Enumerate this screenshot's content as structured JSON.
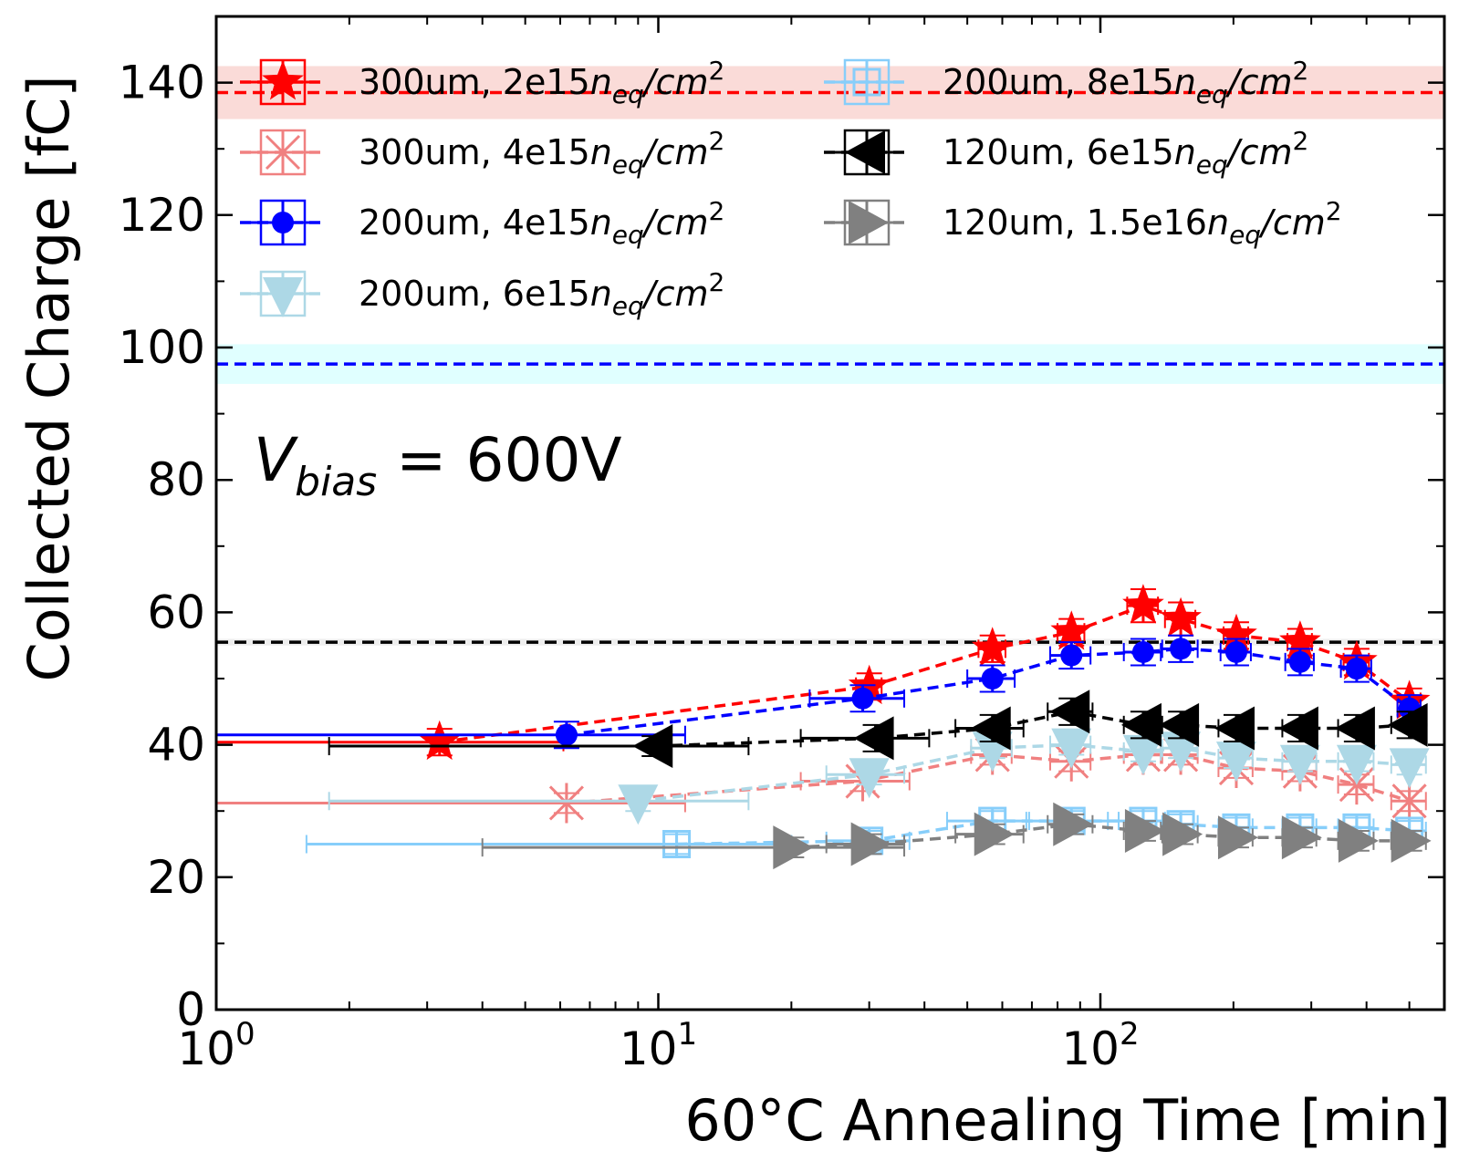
{
  "chart_data": {
    "type": "scatter",
    "title": "",
    "xlabel": "60°C Annealing Time [min]",
    "ylabel": "Collected Charge [fC]",
    "xscale": "log",
    "xlim": [
      1,
      600
    ],
    "ylim": [
      0,
      150
    ],
    "x_ticks": [
      {
        "value": 1,
        "base": "10",
        "exp": "0"
      },
      {
        "value": 10,
        "base": "10",
        "exp": "1"
      },
      {
        "value": 100,
        "base": "10",
        "exp": "2"
      }
    ],
    "y_ticks": [
      {
        "value": 0,
        "label": "0"
      },
      {
        "value": 20,
        "label": "20"
      },
      {
        "value": 40,
        "label": "40"
      },
      {
        "value": 60,
        "label": "60"
      },
      {
        "value": 80,
        "label": "80"
      },
      {
        "value": 100,
        "label": "100"
      },
      {
        "value": 120,
        "label": "120"
      },
      {
        "value": 140,
        "label": "140"
      }
    ],
    "annotation": {
      "v": "V",
      "sub": "bias",
      "rest": " = 600V"
    },
    "reference_lines": [
      {
        "name": "300um-2e15-reference",
        "y": 138.5,
        "band": [
          134.5,
          142.5
        ],
        "color": "#ff0000",
        "band_color": "#fadbd8"
      },
      {
        "name": "200um-4e15-reference",
        "y": 97.5,
        "band": [
          94.5,
          100.5
        ],
        "color": "#0000ff",
        "band_color": "#e0ffff"
      },
      {
        "name": "120um-6e15-reference",
        "y": 55.5,
        "band": [
          55.0,
          56.0
        ],
        "color": "#000000",
        "band_color": "#eeeeee"
      }
    ],
    "legend": {
      "placement": "top",
      "columns": 2
    },
    "series": [
      {
        "name": "300um, 2e15neq/cm2",
        "label_prefix": "300um, 2e15",
        "n_sub": "eq",
        "unit": "/cm",
        "unit_sup": "2",
        "color": "#ff0000",
        "marker": "star",
        "legend_col": 0,
        "legend_row": 0,
        "points": [
          {
            "x": 3.2,
            "y": 40.4,
            "xlo": 1.0,
            "xhi": 6.1,
            "yerr": 2.0
          },
          {
            "x": 30,
            "y": 48.8,
            "xlo": 28,
            "xhi": 32,
            "yerr": 2.0
          },
          {
            "x": 57,
            "y": 54.5,
            "xlo": 53,
            "xhi": 61,
            "yerr": 2.0
          },
          {
            "x": 86,
            "y": 57.0,
            "xlo": 80,
            "xhi": 92,
            "yerr": 2.0
          },
          {
            "x": 125,
            "y": 61.0,
            "xlo": 115,
            "xhi": 135,
            "yerr": 2.5
          },
          {
            "x": 152,
            "y": 59.0,
            "xlo": 140,
            "xhi": 164,
            "yerr": 2.5
          },
          {
            "x": 203,
            "y": 56.5,
            "xlo": 190,
            "xhi": 216,
            "yerr": 2.0
          },
          {
            "x": 283,
            "y": 55.5,
            "xlo": 265,
            "xhi": 301,
            "yerr": 2.0
          },
          {
            "x": 380,
            "y": 52.5,
            "xlo": 355,
            "xhi": 405,
            "yerr": 2.0
          },
          {
            "x": 500,
            "y": 46.5,
            "xlo": 470,
            "xhi": 530,
            "yerr": 2.0
          }
        ]
      },
      {
        "name": "300um, 4e15neq/cm2",
        "label_prefix": "300um, 4e15",
        "n_sub": "eq",
        "unit": "/cm",
        "unit_sup": "2",
        "color": "#f08080",
        "marker": "star-x",
        "legend_col": 0,
        "legend_row": 1,
        "points": [
          {
            "x": 6.2,
            "y": 31.2,
            "xlo": 1.0,
            "xhi": 11.5,
            "yerr": 1.5
          },
          {
            "x": 29,
            "y": 34.5,
            "xlo": 21,
            "xhi": 37,
            "yerr": 1.5
          },
          {
            "x": 57,
            "y": 38.5,
            "xlo": 51,
            "xhi": 63,
            "yerr": 1.5
          },
          {
            "x": 86,
            "y": 37.5,
            "xlo": 77,
            "xhi": 95,
            "yerr": 1.5
          },
          {
            "x": 125,
            "y": 38.5,
            "xlo": 113,
            "xhi": 137,
            "yerr": 1.5
          },
          {
            "x": 152,
            "y": 38.5,
            "xlo": 138,
            "xhi": 166,
            "yerr": 1.5
          },
          {
            "x": 203,
            "y": 36.5,
            "xlo": 185,
            "xhi": 221,
            "yerr": 1.5
          },
          {
            "x": 283,
            "y": 36.0,
            "xlo": 258,
            "xhi": 308,
            "yerr": 1.5
          },
          {
            "x": 380,
            "y": 34.0,
            "xlo": 345,
            "xhi": 415,
            "yerr": 1.5
          },
          {
            "x": 500,
            "y": 31.5,
            "xlo": 455,
            "xhi": 545,
            "yerr": 1.5
          }
        ]
      },
      {
        "name": "200um, 4e15neq/cm2",
        "label_prefix": "200um, 4e15",
        "n_sub": "eq",
        "unit": "/cm",
        "unit_sup": "2",
        "color": "#0000ff",
        "marker": "circle",
        "legend_col": 0,
        "legend_row": 2,
        "points": [
          {
            "x": 6.2,
            "y": 41.5,
            "xlo": 1.0,
            "xhi": 11.5,
            "yerr": 2.0
          },
          {
            "x": 29,
            "y": 47.0,
            "xlo": 22,
            "xhi": 36,
            "yerr": 2.0
          },
          {
            "x": 57,
            "y": 50.0,
            "xlo": 50,
            "xhi": 64,
            "yerr": 2.0
          },
          {
            "x": 86,
            "y": 53.5,
            "xlo": 77,
            "xhi": 95,
            "yerr": 2.0
          },
          {
            "x": 125,
            "y": 54.0,
            "xlo": 113,
            "xhi": 137,
            "yerr": 2.0
          },
          {
            "x": 152,
            "y": 54.5,
            "xlo": 138,
            "xhi": 166,
            "yerr": 2.0
          },
          {
            "x": 203,
            "y": 54.0,
            "xlo": 187,
            "xhi": 219,
            "yerr": 2.0
          },
          {
            "x": 283,
            "y": 52.5,
            "xlo": 262,
            "xhi": 304,
            "yerr": 2.0
          },
          {
            "x": 380,
            "y": 51.5,
            "xlo": 350,
            "xhi": 410,
            "yerr": 2.0
          },
          {
            "x": 500,
            "y": 45.5,
            "xlo": 470,
            "xhi": 530,
            "yerr": 2.0
          }
        ]
      },
      {
        "name": "200um, 6e15neq/cm2",
        "label_prefix": "200um, 6e15",
        "n_sub": "eq",
        "unit": "/cm",
        "unit_sup": "2",
        "color": "#add8e6",
        "marker": "triangle-down",
        "legend_col": 0,
        "legend_row": 3,
        "points": [
          {
            "x": 9.0,
            "y": 31.5,
            "xlo": 1.8,
            "xhi": 16,
            "yerr": 1.5
          },
          {
            "x": 30,
            "y": 35.5,
            "xlo": 24,
            "xhi": 36,
            "yerr": 1.5
          },
          {
            "x": 57,
            "y": 39.5,
            "xlo": 51,
            "xhi": 63,
            "yerr": 1.5
          },
          {
            "x": 86,
            "y": 40.0,
            "xlo": 77,
            "xhi": 95,
            "yerr": 1.5
          },
          {
            "x": 125,
            "y": 39.0,
            "xlo": 113,
            "xhi": 137,
            "yerr": 1.5
          },
          {
            "x": 152,
            "y": 39.5,
            "xlo": 138,
            "xhi": 166,
            "yerr": 1.5
          },
          {
            "x": 203,
            "y": 38.0,
            "xlo": 185,
            "xhi": 221,
            "yerr": 1.5
          },
          {
            "x": 283,
            "y": 37.5,
            "xlo": 258,
            "xhi": 308,
            "yerr": 1.5
          },
          {
            "x": 380,
            "y": 37.5,
            "xlo": 345,
            "xhi": 415,
            "yerr": 1.5
          },
          {
            "x": 500,
            "y": 37.0,
            "xlo": 455,
            "xhi": 545,
            "yerr": 1.5
          }
        ]
      },
      {
        "name": "200um, 8e15neq/cm2",
        "label_prefix": "200um, 8e15",
        "n_sub": "eq",
        "unit": "/cm",
        "unit_sup": "2",
        "color": "#87cefa",
        "marker": "plus-square",
        "legend_col": 1,
        "legend_row": 0,
        "points": [
          {
            "x": 11,
            "y": 25.0,
            "xlo": 1.6,
            "xhi": 20,
            "yerr": 1.5
          },
          {
            "x": 30,
            "y": 25.5,
            "xlo": 24,
            "xhi": 37,
            "yerr": 1.5
          },
          {
            "x": 57,
            "y": 28.5,
            "xlo": 45,
            "xhi": 69,
            "yerr": 1.5
          },
          {
            "x": 86,
            "y": 28.5,
            "xlo": 68,
            "xhi": 104,
            "yerr": 1.5
          },
          {
            "x": 125,
            "y": 28.5,
            "xlo": 110,
            "xhi": 140,
            "yerr": 1.5
          },
          {
            "x": 152,
            "y": 28.0,
            "xlo": 138,
            "xhi": 166,
            "yerr": 1.5
          },
          {
            "x": 203,
            "y": 27.5,
            "xlo": 185,
            "xhi": 221,
            "yerr": 1.5
          },
          {
            "x": 283,
            "y": 27.5,
            "xlo": 258,
            "xhi": 308,
            "yerr": 1.5
          },
          {
            "x": 380,
            "y": 27.5,
            "xlo": 345,
            "xhi": 415,
            "yerr": 1.5
          },
          {
            "x": 500,
            "y": 27.0,
            "xlo": 455,
            "xhi": 545,
            "yerr": 1.5
          }
        ]
      },
      {
        "name": "120um, 6e15neq/cm2",
        "label_prefix": "120um, 6e15",
        "n_sub": "eq",
        "unit": "/cm",
        "unit_sup": "2",
        "color": "#000000",
        "marker": "triangle-left",
        "legend_col": 1,
        "legend_row": 1,
        "points": [
          {
            "x": 9.8,
            "y": 39.8,
            "xlo": 1.8,
            "xhi": 16,
            "yerr": 1.5
          },
          {
            "x": 31,
            "y": 41.0,
            "xlo": 21,
            "xhi": 41,
            "yerr": 2.0
          },
          {
            "x": 57,
            "y": 42.5,
            "xlo": 47,
            "xhi": 67,
            "yerr": 2.0
          },
          {
            "x": 86,
            "y": 45.0,
            "xlo": 76,
            "xhi": 96,
            "yerr": 2.0
          },
          {
            "x": 125,
            "y": 43.0,
            "xlo": 113,
            "xhi": 137,
            "yerr": 2.0
          },
          {
            "x": 152,
            "y": 43.0,
            "xlo": 138,
            "xhi": 166,
            "yerr": 2.0
          },
          {
            "x": 203,
            "y": 42.5,
            "xlo": 185,
            "xhi": 221,
            "yerr": 2.0
          },
          {
            "x": 283,
            "y": 42.5,
            "xlo": 258,
            "xhi": 308,
            "yerr": 2.0
          },
          {
            "x": 380,
            "y": 42.5,
            "xlo": 345,
            "xhi": 415,
            "yerr": 2.0
          },
          {
            "x": 500,
            "y": 43.0,
            "xlo": 455,
            "xhi": 545,
            "yerr": 2.0
          }
        ]
      },
      {
        "name": "120um, 1.5e16neq/cm2",
        "label_prefix": "120um, 1.5e16",
        "n_sub": "eq",
        "unit": "/cm",
        "unit_sup": "2",
        "color": "#808080",
        "marker": "triangle-right",
        "legend_col": 1,
        "legend_row": 2,
        "points": [
          {
            "x": 20,
            "y": 24.5,
            "xlo": 4.0,
            "xhi": 36,
            "yerr": 1.5
          },
          {
            "x": 30,
            "y": 25.0,
            "xlo": 24,
            "xhi": 36,
            "yerr": 1.5
          },
          {
            "x": 57,
            "y": 26.5,
            "xlo": 47,
            "xhi": 67,
            "yerr": 1.5
          },
          {
            "x": 86,
            "y": 28.0,
            "xlo": 76,
            "xhi": 96,
            "yerr": 1.5
          },
          {
            "x": 125,
            "y": 27.0,
            "xlo": 113,
            "xhi": 137,
            "yerr": 1.5
          },
          {
            "x": 152,
            "y": 26.5,
            "xlo": 138,
            "xhi": 166,
            "yerr": 1.5
          },
          {
            "x": 203,
            "y": 26.0,
            "xlo": 185,
            "xhi": 221,
            "yerr": 1.5
          },
          {
            "x": 283,
            "y": 26.0,
            "xlo": 258,
            "xhi": 308,
            "yerr": 1.5
          },
          {
            "x": 380,
            "y": 25.5,
            "xlo": 345,
            "xhi": 415,
            "yerr": 1.5
          },
          {
            "x": 500,
            "y": 25.5,
            "xlo": 455,
            "xhi": 545,
            "yerr": 1.5
          }
        ]
      }
    ]
  }
}
